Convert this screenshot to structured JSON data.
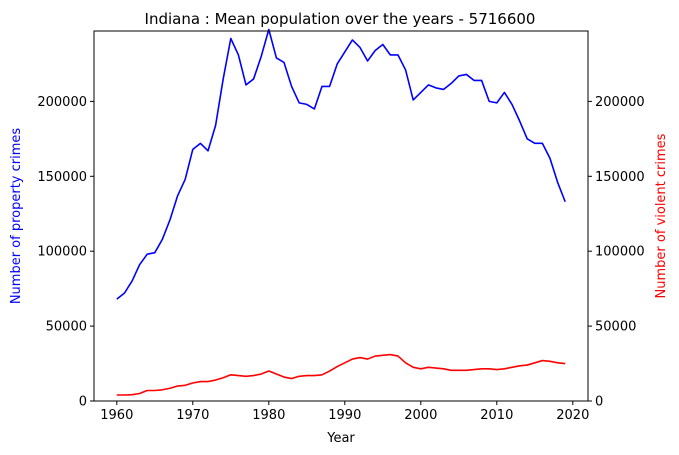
{
  "chart_data": {
    "type": "line",
    "title": "Indiana : Mean population over the years - 5716600",
    "xlabel": "Year",
    "ylabel_left": "Number of property crimes",
    "ylabel_right": "Number of violent crimes",
    "xlim": [
      1957,
      2022
    ],
    "ylim_left": [
      0,
      247000
    ],
    "ylim_right": [
      0,
      247000
    ],
    "x_ticks": [
      1960,
      1970,
      1980,
      1990,
      2000,
      2010,
      2020
    ],
    "y_ticks_left": [
      0,
      50000,
      100000,
      150000,
      200000
    ],
    "y_ticks_right": [
      0,
      50000,
      100000,
      150000,
      200000
    ],
    "grid": false,
    "colors": {
      "left_axis": "#0000ff",
      "right_axis": "#ff0000"
    },
    "x": [
      1960,
      1961,
      1962,
      1963,
      1964,
      1965,
      1966,
      1967,
      1968,
      1969,
      1970,
      1971,
      1972,
      1973,
      1974,
      1975,
      1976,
      1977,
      1978,
      1979,
      1980,
      1981,
      1982,
      1983,
      1984,
      1985,
      1986,
      1987,
      1988,
      1989,
      1990,
      1991,
      1992,
      1993,
      1994,
      1995,
      1996,
      1997,
      1998,
      1999,
      2000,
      2001,
      2002,
      2003,
      2004,
      2005,
      2006,
      2007,
      2008,
      2009,
      2010,
      2011,
      2012,
      2013,
      2014,
      2015,
      2016,
      2017,
      2018,
      2019
    ],
    "series": [
      {
        "axis": "left",
        "color": "#0000ff",
        "values": [
          68000,
          72000,
          80000,
          91000,
          98000,
          99000,
          108000,
          121000,
          137000,
          148000,
          168000,
          172000,
          167000,
          184000,
          215000,
          242000,
          231000,
          211000,
          215000,
          230000,
          248000,
          229000,
          226000,
          210000,
          199000,
          198000,
          195000,
          210000,
          210000,
          225000,
          233000,
          241000,
          236000,
          227000,
          234000,
          238000,
          231000,
          231000,
          221000,
          201000,
          206000,
          211000,
          209000,
          208000,
          212000,
          217000,
          218000,
          214000,
          214000,
          200000,
          199000,
          206000,
          198000,
          187000,
          175000,
          172000,
          172000,
          162000,
          146000,
          133000
        ]
      },
      {
        "axis": "right",
        "color": "#ff0000",
        "values": [
          4000,
          4000,
          4200,
          5000,
          7000,
          7000,
          7500,
          8500,
          10000,
          10500,
          12000,
          13000,
          13000,
          14000,
          15500,
          17500,
          17000,
          16500,
          17000,
          18000,
          20000,
          18000,
          16000,
          15000,
          16500,
          17000,
          17000,
          17500,
          20000,
          23000,
          25500,
          28000,
          29000,
          28000,
          30000,
          30500,
          31000,
          30000,
          25500,
          22500,
          21500,
          22500,
          22000,
          21500,
          20500,
          20500,
          20500,
          21000,
          21500,
          21500,
          21000,
          21500,
          22500,
          23500,
          24000,
          25500,
          27000,
          26500,
          25500,
          25000
        ]
      }
    ]
  }
}
